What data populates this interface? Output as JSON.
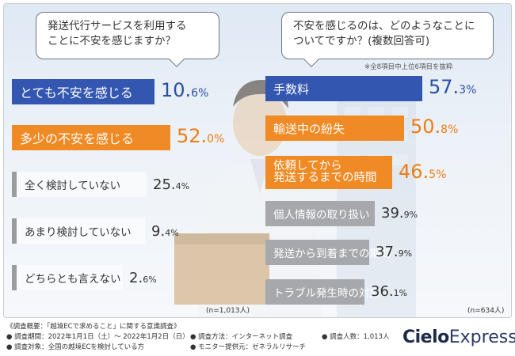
{
  "left_chart": {
    "question": [
      "発送代行サービスを利用する",
      "ことに不安を感じますか？"
    ],
    "n_label": "(n=1,013人)"
  },
  "right_chart": {
    "question": [
      "不安を感じるのは、どのようなことに",
      "ついてですか？(複数回答可)"
    ],
    "footnote": "※全8項目中上位6項目を抜粋",
    "n_label": "(n=634人)"
  },
  "survey": {
    "title": "《調査概要：「越境ECで求めること」に関する意識調査》",
    "period": "● 調査期間：2022年1月1日（土）～ 2022年1月2日（日）",
    "method": "● 調査方法：インターネット調査",
    "count": "● 調査人数：1,013人",
    "target": "● 調査対象：全国の越境ECを検討している方",
    "provider": "● モニター提供元：ゼネラルリサーチ"
  },
  "brand": {
    "bold": "Cielo",
    "light": "Express"
  },
  "colors": {
    "blue": "#3356b0",
    "orange": "#f08a24",
    "gray": "#a6a8ab"
  },
  "chart_data": [
    {
      "type": "bar",
      "title": "発送代行サービスを利用することに不安を感じますか？",
      "categories": [
        "とても不安を感じる",
        "多少の不安を感じる",
        "全く検討していない",
        "あまり検討していない",
        "どちらとも言えない"
      ],
      "values": [
        10.6,
        52.0,
        25.4,
        9.4,
        2.6
      ],
      "value_text": [
        [
          "10.",
          "6",
          "%"
        ],
        [
          "52.",
          "0",
          "%"
        ],
        [
          "25.",
          "4",
          "%"
        ],
        [
          "9.",
          "4",
          "%"
        ],
        [
          "2.",
          "6",
          "%"
        ]
      ],
      "styles": [
        "blue",
        "orange",
        "outline",
        "outline",
        "outline"
      ],
      "sample": "n=1,013人"
    },
    {
      "type": "bar",
      "title": "不安を感じるのは、どのようなことについてですか？(複数回答可)",
      "categories": [
        "手数料",
        "輸送中の紛失",
        "依頼してから発送するまでの時間",
        "個人情報の取り扱い",
        "発送から到着までの期間",
        "トラブル発生時の対応"
      ],
      "category_lines": [
        [
          "手数料"
        ],
        [
          "輸送中の紛失"
        ],
        [
          "依頼してから",
          "発送するまでの時間"
        ],
        [
          "個人情報の取り扱い"
        ],
        [
          "発送から到着までの期間"
        ],
        [
          "トラブル発生時の対応"
        ]
      ],
      "values": [
        57.3,
        50.8,
        46.5,
        39.9,
        37.9,
        36.1
      ],
      "value_text": [
        [
          "57.",
          "3",
          "%"
        ],
        [
          "50.",
          "8",
          "%"
        ],
        [
          "46.",
          "5",
          "%"
        ],
        [
          "39.",
          "9",
          "%"
        ],
        [
          "37.",
          "9",
          "%"
        ],
        [
          "36.",
          "1",
          "%"
        ]
      ],
      "styles": [
        "blue",
        "orange",
        "orange",
        "gray",
        "gray",
        "gray"
      ],
      "sample": "n=634人"
    }
  ]
}
